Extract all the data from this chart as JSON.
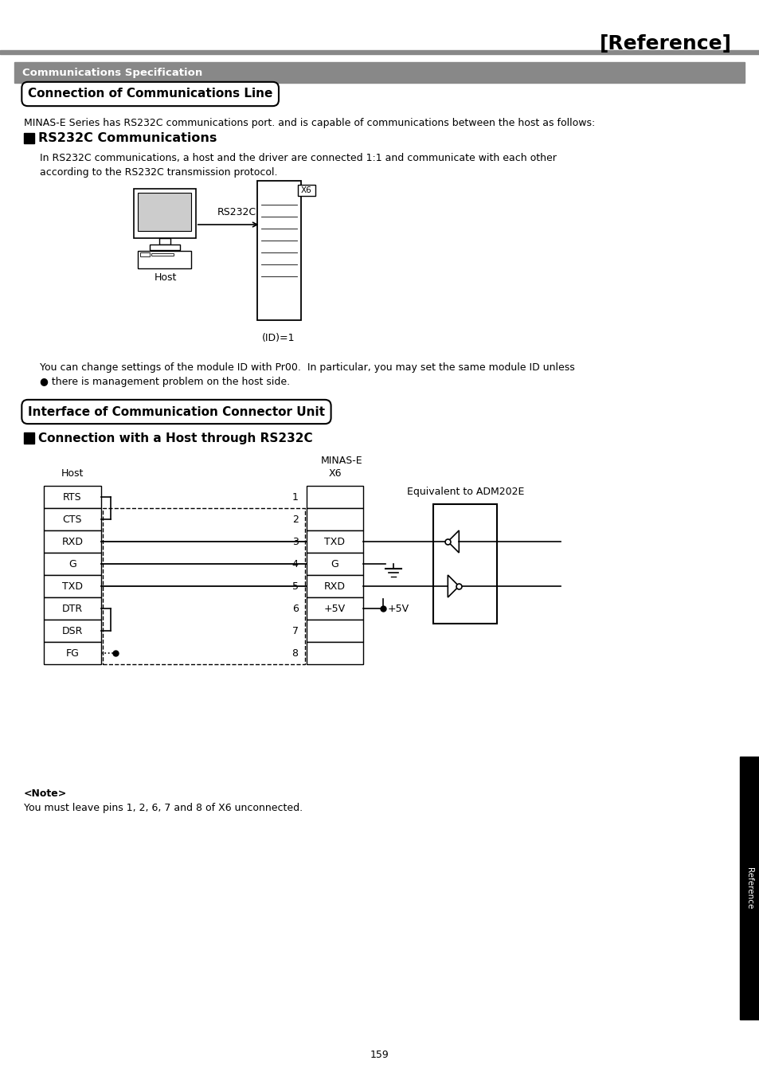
{
  "title": "[Reference]",
  "section_header": "Communications Specification",
  "subsection1": "Connection of Communications Line",
  "intro_text": "MINAS-E Series has RS232C communications port. and is capable of communications between the host as follows:",
  "rs232c_header": "RS232C Communications",
  "rs232c_text1": "In RS232C communications, a host and the driver are connected 1:1 and communicate with each other",
  "rs232c_text2": "according to the RS232C transmission protocol.",
  "id_label": "(ID)=1",
  "rs232c_label": "RS232C",
  "host_label1": "Host",
  "note_text1": "You can change settings of the module ID with Pr00.  In particular, you may set the same module ID unless",
  "note_text2": "● there is management problem on the host side.",
  "subsection2": "Interface of Communication Connector Unit",
  "conn_header": "Connection with a Host through RS232C",
  "minas_e_label": "MINAS-E",
  "x6_label": "X6",
  "host_label2": "Host",
  "equivalent_label": "Equivalent to ADM202E",
  "host_signals": [
    "RTS",
    "CTS",
    "RXD",
    "G",
    "TXD",
    "DTR",
    "DSR",
    "FG"
  ],
  "x6_pin_labels": [
    "1",
    "2",
    "3",
    "4",
    "5",
    "6",
    "7",
    "8"
  ],
  "note_header": "<Note>",
  "note_body": "You must leave pins 1, 2, 6, 7 and 8 of X6 unconnected.",
  "page_number": "159",
  "reference_sidebar": "Reference",
  "bg_color": "#ffffff",
  "header_bg": "#888888",
  "black": "#000000"
}
